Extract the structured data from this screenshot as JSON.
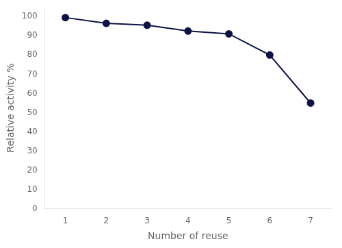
{
  "chart_data": {
    "type": "line",
    "x": [
      1,
      2,
      3,
      4,
      5,
      6,
      7
    ],
    "values": [
      99.5,
      96.5,
      95.5,
      92.5,
      91.0,
      80.0,
      55.0
    ],
    "color": "#0d1444",
    "marker": "o",
    "xlabel": "Number of reuse",
    "ylabel": "Relative activity %",
    "xlim": [
      0.5,
      7.5
    ],
    "ylim": [
      0,
      105
    ],
    "xticks": [
      1,
      2,
      3,
      4,
      5,
      6,
      7
    ],
    "yticks": [
      0,
      10,
      20,
      30,
      40,
      50,
      60,
      70,
      80,
      90,
      100
    ],
    "grid": false
  }
}
